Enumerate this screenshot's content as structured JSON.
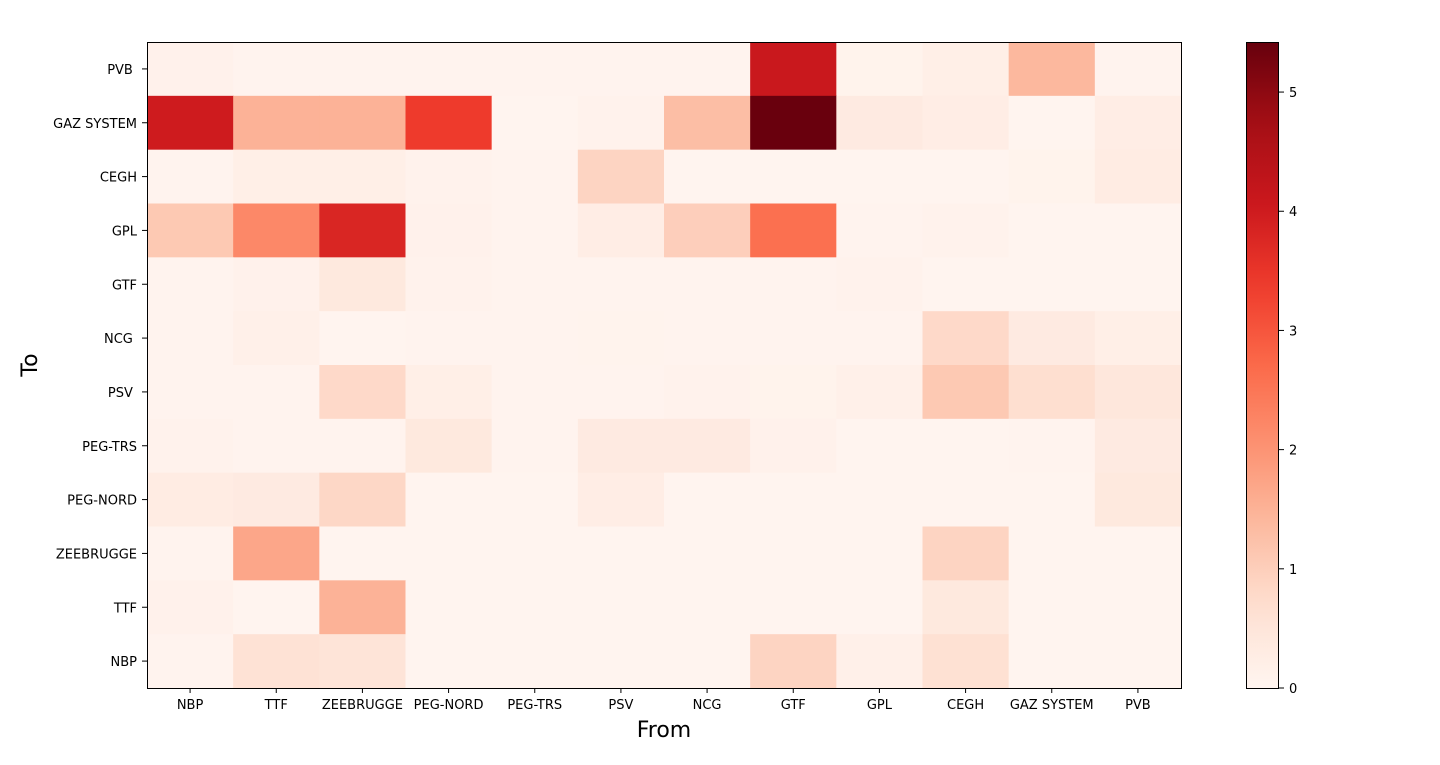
{
  "chart_data": {
    "type": "heatmap",
    "title": "",
    "xlabel": "From",
    "ylabel": "To",
    "x_categories": [
      "NBP",
      "TTF",
      "ZEEBRUGGE",
      "PEG-NORD",
      "PEG-TRS",
      "PSV",
      "NCG",
      "GTF",
      "GPL",
      "CEGH",
      "GAZ SYSTEM",
      "PVB"
    ],
    "y_categories": [
      "PVB ",
      "GAZ SYSTEM",
      "CEGH",
      "GPL",
      "GTF",
      "NCG ",
      "PSV ",
      "PEG-TRS",
      "PEG-NORD",
      "ZEEBRUGGE",
      "TTF",
      "NBP"
    ],
    "values": [
      [
        0.12,
        0.05,
        0.05,
        0.05,
        0.05,
        0.05,
        0.05,
        4.1,
        0.08,
        0.2,
        1.4,
        0.05
      ],
      [
        4.0,
        1.5,
        1.5,
        3.4,
        0.02,
        0.1,
        1.3,
        5.4,
        0.35,
        0.25,
        0.02,
        0.25
      ],
      [
        0.05,
        0.2,
        0.2,
        0.1,
        0.05,
        0.9,
        0.02,
        0.02,
        0.02,
        0.02,
        0.08,
        0.3
      ],
      [
        1.1,
        2.2,
        3.8,
        0.12,
        0.05,
        0.25,
        1.0,
        2.6,
        0.05,
        0.1,
        0.02,
        0.02
      ],
      [
        0.05,
        0.12,
        0.4,
        0.1,
        0.05,
        0.05,
        0.05,
        0.05,
        0.1,
        0.02,
        0.02,
        0.02
      ],
      [
        0.05,
        0.15,
        0.02,
        0.05,
        0.05,
        0.07,
        0.05,
        0.05,
        0.05,
        0.8,
        0.35,
        0.2
      ],
      [
        0.05,
        0.05,
        0.8,
        0.2,
        0.05,
        0.05,
        0.1,
        0.08,
        0.15,
        1.1,
        0.7,
        0.45
      ],
      [
        0.1,
        0.05,
        0.05,
        0.4,
        0.05,
        0.35,
        0.35,
        0.12,
        0.02,
        0.02,
        0.05,
        0.35
      ],
      [
        0.3,
        0.35,
        0.85,
        0.02,
        0.02,
        0.25,
        0.02,
        0.02,
        0.02,
        0.02,
        0.02,
        0.4
      ],
      [
        0.05,
        1.7,
        0.02,
        0.02,
        0.02,
        0.02,
        0.02,
        0.02,
        0.02,
        0.9,
        0.02,
        0.02
      ],
      [
        0.12,
        0.02,
        1.5,
        0.02,
        0.02,
        0.02,
        0.02,
        0.02,
        0.02,
        0.4,
        0.02,
        0.02
      ],
      [
        0.05,
        0.6,
        0.55,
        0.02,
        0.02,
        0.02,
        0.02,
        0.9,
        0.15,
        0.65,
        0.02,
        0.02
      ]
    ],
    "vmin": 0,
    "vmax": 5.42,
    "colormap": "Reds",
    "colorbar_ticks": [
      0,
      1,
      2,
      3,
      4,
      5
    ],
    "grid": false
  },
  "colors": {
    "scale_low": "#fff5f0",
    "scale_high": "#67000d",
    "axis": "#000000"
  }
}
